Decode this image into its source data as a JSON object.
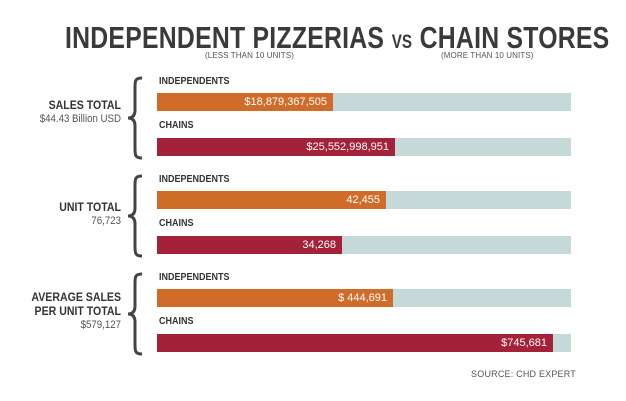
{
  "title": {
    "left": "INDEPENDENT PIZZERIAS",
    "vs": "VS",
    "right": "CHAIN STORES"
  },
  "subnotes": {
    "independents": "(LESS THAN 10 UNITS)",
    "chains": "(MORE THAN 10 UNITS)"
  },
  "source": "SOURCE: CHD EXPERT",
  "colors": {
    "independents": "#d06c2a",
    "chains": "#a4213a",
    "track": "#c6d9d9",
    "brace": "#444444"
  },
  "chart_data": {
    "type": "bar",
    "orientation": "horizontal",
    "groups": [
      {
        "label": "SALES TOTAL",
        "sublabel": "$44.43 Billion USD",
        "total": 44432366456,
        "bars": [
          {
            "name": "INDEPENDENTS",
            "value": 18879367505,
            "label": "$18,879,367,505"
          },
          {
            "name": "CHAINS",
            "value": 25552998951,
            "label": "$25,552,998,951"
          }
        ]
      },
      {
        "label": "UNIT TOTAL",
        "sublabel": "76,723",
        "total": 76723,
        "bars": [
          {
            "name": "INDEPENDENTS",
            "value": 42455,
            "label": "42,455"
          },
          {
            "name": "CHAINS",
            "value": 34268,
            "label": "34,268"
          }
        ]
      },
      {
        "label": "AVERAGE SALES PER UNIT TOTAL",
        "sublabel": "$579,127",
        "total": 579127,
        "scale_max": 780000,
        "bars": [
          {
            "name": "INDEPENDENTS",
            "value": 444691,
            "label": "$ 444,691"
          },
          {
            "name": "CHAINS",
            "value": 745681,
            "label": "$745,681"
          }
        ]
      }
    ]
  }
}
